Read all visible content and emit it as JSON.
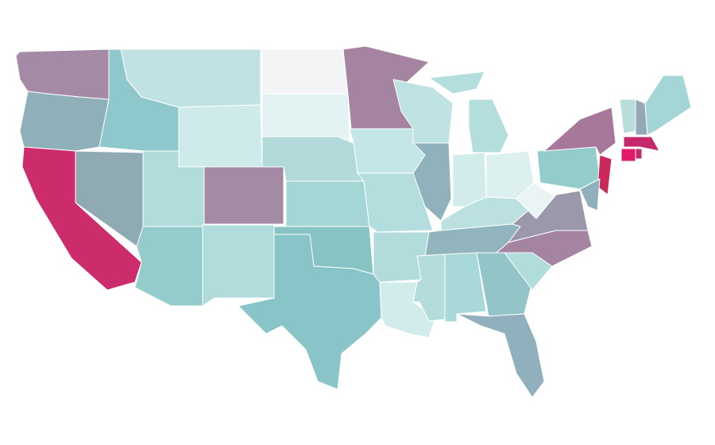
{
  "map": {
    "regions": [
      {
        "color": "#a48aa4"
      },
      {
        "color": "#8fb0b8"
      },
      {
        "color": "#cc2c6c"
      },
      {
        "color": "#90aab4"
      },
      {
        "color": "#8ec8cc"
      },
      {
        "color": "#c0e2e2"
      },
      {
        "color": "#cfeaea"
      },
      {
        "color": "#b0dcdc"
      },
      {
        "color": "#a48aa4"
      },
      {
        "color": "#94cccc"
      },
      {
        "color": "#b0dcdc"
      },
      {
        "color": "#f2f4f5"
      },
      {
        "color": "#e3f2f2"
      },
      {
        "color": "#b2dada"
      },
      {
        "color": "#a4d6d6"
      },
      {
        "color": "#88c4c4"
      },
      {
        "color": "#88c4c8"
      },
      {
        "color": "#a484a0"
      },
      {
        "color": "#c4e6e6"
      },
      {
        "color": "#b4dede"
      },
      {
        "color": "#b2dcdc"
      },
      {
        "color": "#d2ecec"
      },
      {
        "color": "#bfe2e2"
      },
      {
        "color": "#90b2bc"
      },
      {
        "color": "#b4dede"
      },
      {
        "color": "#b4dede"
      },
      {
        "color": "#d2ecec"
      },
      {
        "color": "#dcf0f0"
      },
      {
        "color": "#bce0e0"
      },
      {
        "color": "#92b4be"
      },
      {
        "color": "#b4dcdc"
      },
      {
        "color": "#a8d8d8"
      },
      {
        "color": "#92c4c8"
      },
      {
        "color": "#8fb0bc"
      },
      {
        "color": "#b0dcdc"
      },
      {
        "color": "#a484a0"
      },
      {
        "color": "#9c98ac"
      },
      {
        "color": "#eaf4f4"
      },
      {
        "color": "#94cccc"
      },
      {
        "color": "#a8789a"
      },
      {
        "color": "#c8285a"
      },
      {
        "color": "#8fb0bc"
      },
      {
        "color": "#b8dedc"
      },
      {
        "color": "#94a8b8"
      },
      {
        "color": "#a4d6d8"
      },
      {
        "color": "#c6286c"
      },
      {
        "color": "#e2186a"
      },
      {
        "color": "#c4286a"
      }
    ]
  }
}
